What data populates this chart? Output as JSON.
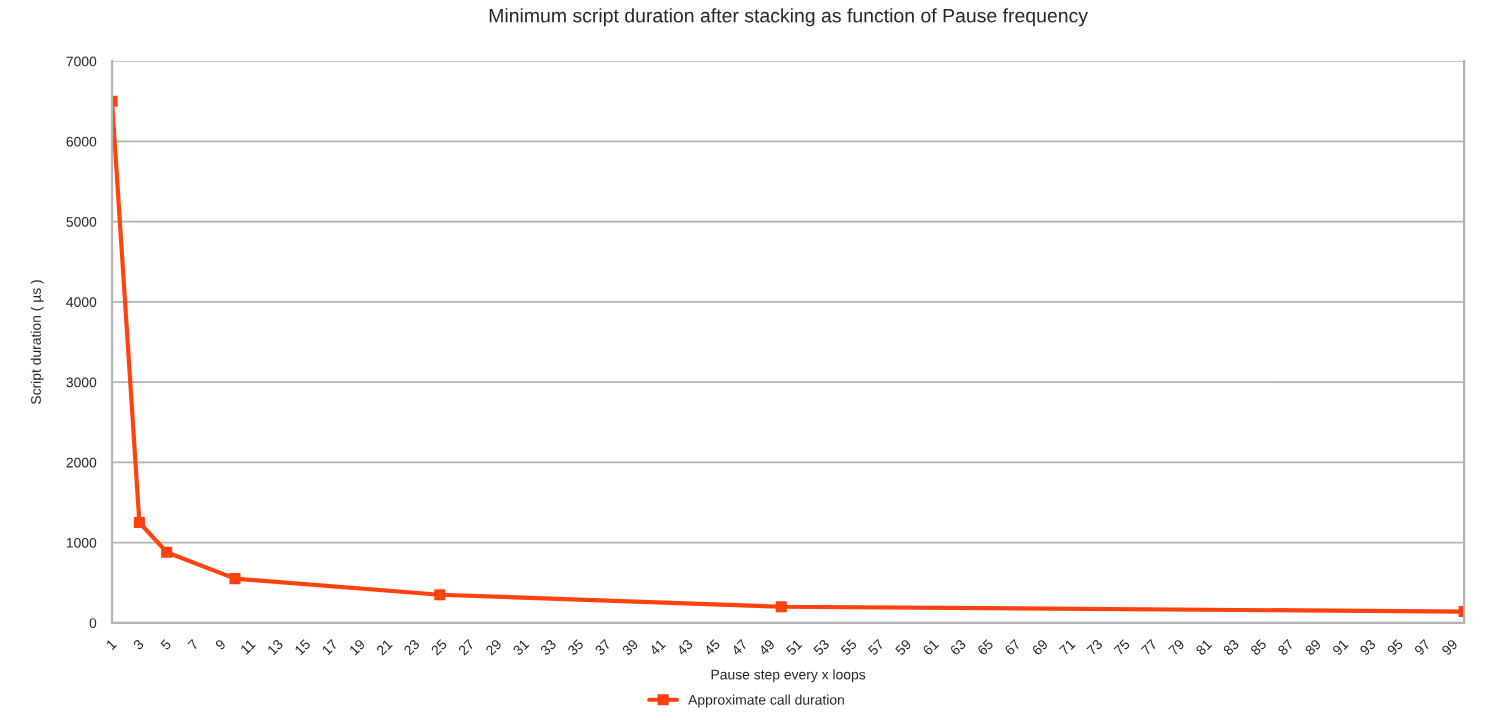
{
  "chart_data": {
    "type": "line",
    "title": "Minimum script duration after stacking as function of Pause frequency",
    "xlabel": "Pause step every x loops",
    "ylabel": "Script duration ( µs )",
    "x": [
      1,
      3,
      5,
      10,
      25,
      50,
      100
    ],
    "series": [
      {
        "name": "Approximate call duration",
        "color": "#ff420e",
        "values": [
          6500,
          1250,
          880,
          550,
          350,
          200,
          140
        ]
      }
    ],
    "xlim": [
      1,
      100
    ],
    "xticks": [
      1,
      3,
      5,
      7,
      9,
      11,
      13,
      15,
      17,
      19,
      21,
      23,
      25,
      27,
      29,
      31,
      33,
      35,
      37,
      39,
      41,
      43,
      45,
      47,
      49,
      51,
      53,
      55,
      57,
      59,
      61,
      63,
      65,
      67,
      69,
      71,
      73,
      75,
      77,
      79,
      81,
      83,
      85,
      87,
      89,
      91,
      93,
      95,
      97,
      99
    ],
    "ylim": [
      0,
      7000
    ],
    "yticks": [
      0,
      1000,
      2000,
      3000,
      4000,
      5000,
      6000,
      7000
    ],
    "grid": "y",
    "legend": "bottom",
    "marker": "square",
    "line_style": "solid"
  }
}
